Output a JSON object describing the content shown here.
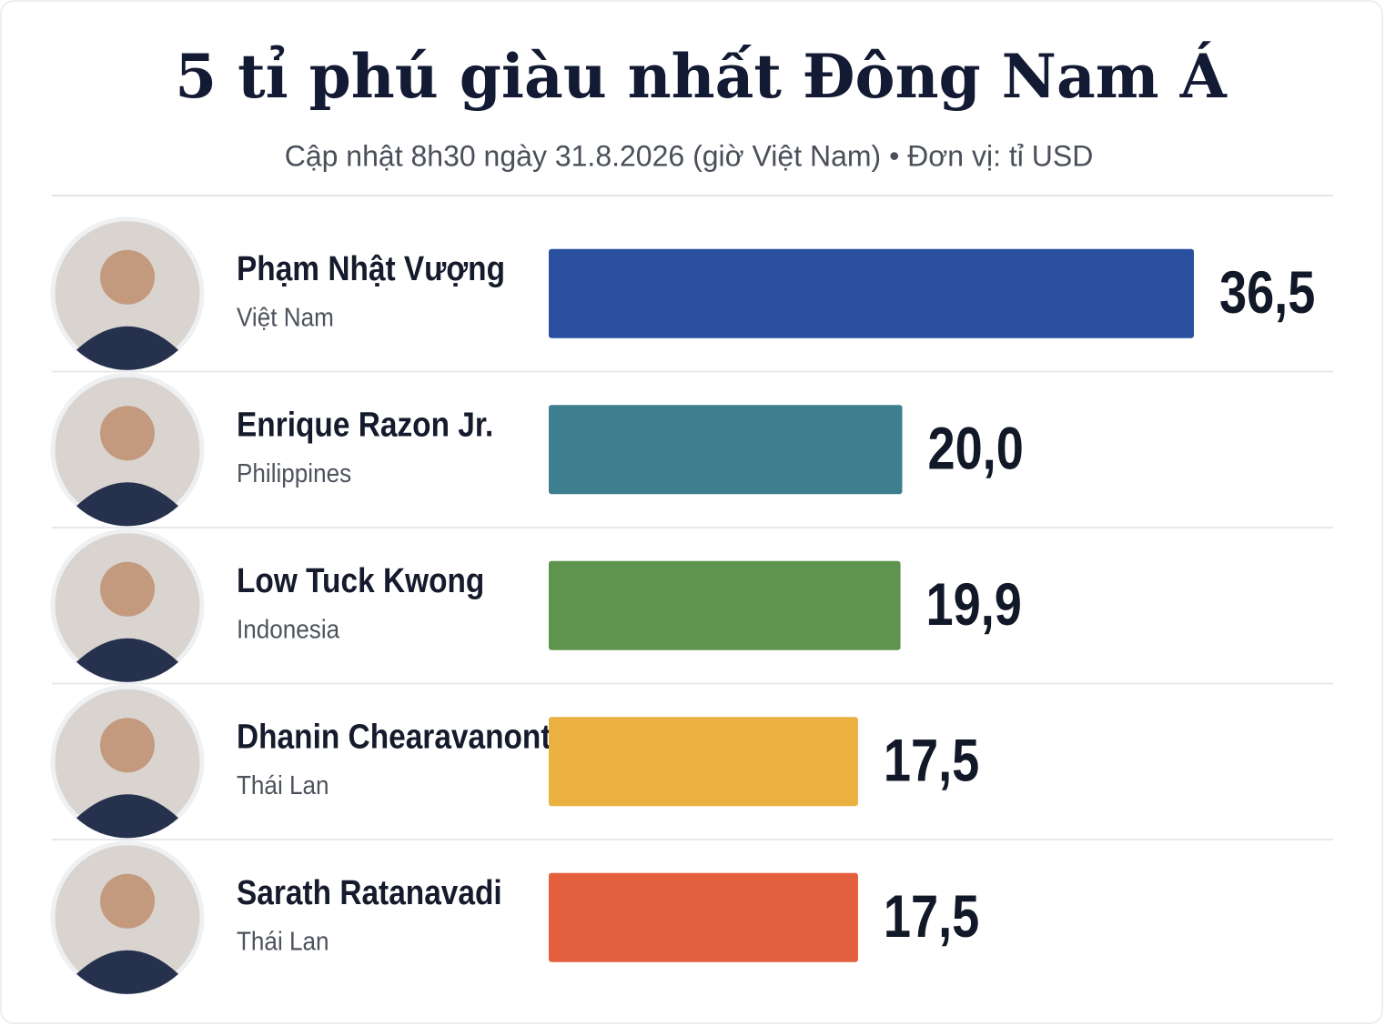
{
  "chart_data": {
    "type": "bar",
    "orientation": "horizontal",
    "title": "5 tỉ phú giàu nhất Đông Nam Á",
    "subtitle": "Cập nhật 8h30 ngày 31.8.2026 (giờ Việt Nam) • Đơn vị: tỉ USD",
    "categories": [
      "Phạm Nhật Vượng",
      "Enrique Razon Jr.",
      "Low Tuck Kwong",
      "Dhanin Chearavanont",
      "Sarath Ratanavadi"
    ],
    "countries": [
      "Việt Nam",
      "Philippines",
      "Indonesia",
      "Thái Lan",
      "Thái Lan"
    ],
    "values": [
      36.5,
      20.0,
      19.9,
      17.5,
      17.5
    ],
    "value_labels": [
      "36,5",
      "20,0",
      "19,9",
      "17,5",
      "17,5"
    ],
    "colors": [
      "#2a4f9e",
      "#3e7f8f",
      "#5f944f",
      "#eab040",
      "#e5603f"
    ]
  }
}
